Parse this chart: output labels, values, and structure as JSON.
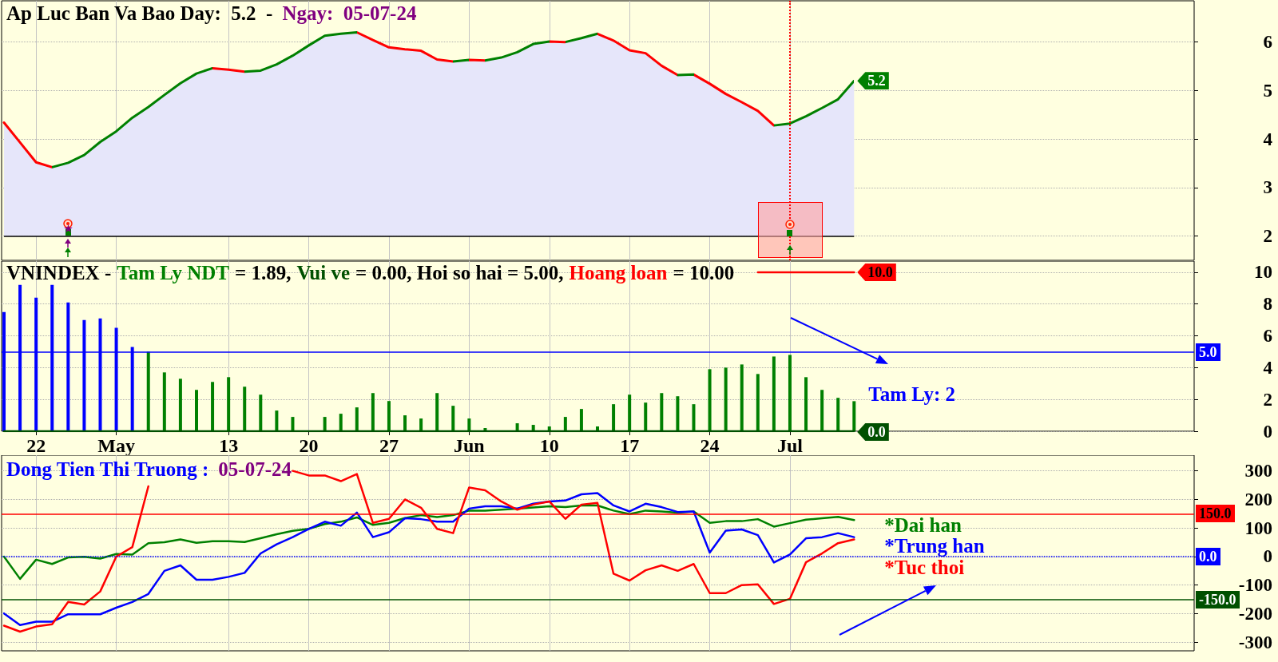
{
  "chart_data": [
    {
      "type": "area",
      "title": "Ap Luc Ban Va Bao Day:  5.2  -",
      "subtitle": "Ngay:  05-07-24",
      "categories": [
        null,
        null,
        null,
        null,
        null,
        null,
        null,
        null,
        null,
        null,
        null,
        null,
        null,
        null,
        null,
        null,
        null,
        null,
        null,
        null,
        null,
        null,
        null,
        null,
        null,
        null,
        null,
        null,
        null,
        null,
        null,
        null,
        null,
        null,
        null,
        null,
        null,
        null,
        null,
        null,
        null,
        null,
        null,
        null,
        null,
        null,
        null,
        null,
        null,
        null,
        null,
        null,
        null,
        null
      ],
      "series": [
        {
          "color": "#e6e6fa",
          "colors": [
            "#ff0000",
            "#ff0000",
            "#ff0000",
            "#ff0000",
            "#008000",
            "#008000",
            "#008000",
            "#008000",
            "#008000",
            "#008000",
            "#008000",
            "#008000",
            "#008000",
            "#008000",
            "#ff0000",
            "#ff0000",
            "#008000",
            "#008000",
            "#008000",
            "#008000",
            "#008000",
            "#008000",
            "#008000",
            "#ff0000",
            "#ff0000",
            "#ff0000",
            "#ff0000",
            "#ff0000",
            "#ff0000",
            "#008000",
            "#ff0000",
            "#008000",
            "#008000",
            "#008000",
            "#008000",
            "#ff0000",
            "#008000",
            "#008000",
            "#ff0000",
            "#ff0000",
            "#ff0000",
            "#ff0000",
            "#ff0000",
            "#008000",
            "#ff0000",
            "#ff0000",
            "#ff0000",
            "#ff0000",
            "#ff0000",
            "#008000",
            "#008000",
            "#008000",
            "#008000",
            "#008000"
          ],
          "values": [
            4.34,
            3.93,
            3.52,
            3.42,
            3.51,
            3.67,
            3.94,
            4.16,
            4.44,
            4.66,
            4.91,
            5.15,
            5.35,
            5.46,
            5.43,
            5.39,
            5.41,
            5.54,
            5.72,
            5.93,
            6.13,
            6.17,
            6.2,
            6.04,
            5.89,
            5.85,
            5.82,
            5.64,
            5.6,
            5.63,
            5.62,
            5.68,
            5.79,
            5.96,
            6.01,
            6.0,
            6.08,
            6.17,
            6.03,
            5.83,
            5.77,
            5.51,
            5.32,
            5.33,
            5.14,
            4.93,
            4.76,
            4.58,
            4.28,
            4.32,
            4.47,
            4.64,
            4.82,
            5.2
          ],
          "value_labels": [
            null,
            null,
            null,
            null,
            null,
            null,
            null,
            null,
            null,
            null,
            null,
            null,
            null,
            null,
            null,
            null,
            null,
            null,
            null,
            null,
            null,
            null,
            null,
            null,
            null,
            null,
            null,
            null,
            null,
            null,
            null,
            null,
            null,
            null,
            null,
            null,
            null,
            null,
            null,
            null,
            null,
            null,
            null,
            null,
            null,
            null,
            null,
            null,
            null,
            null,
            null,
            null,
            null,
            "5.2"
          ]
        }
      ],
      "ylim": [
        1.5,
        6.85
      ],
      "yticks": [
        2,
        3,
        4,
        5,
        6
      ],
      "grid": true,
      "ref_lines": [
        {
          "axis": "y",
          "value": 2,
          "color": "#000000"
        }
      ]
    },
    {
      "type": "bar",
      "title": "VNINDEX -",
      "legend": "top",
      "categories": [
        null,
        null,
        "22",
        null,
        null,
        null,
        null,
        "May",
        null,
        null,
        null,
        null,
        null,
        null,
        "13",
        null,
        null,
        null,
        null,
        "20",
        null,
        null,
        null,
        null,
        "27",
        null,
        null,
        null,
        null,
        "Jun",
        null,
        null,
        null,
        null,
        "10",
        null,
        null,
        null,
        null,
        "17",
        null,
        null,
        null,
        null,
        "24",
        null,
        null,
        null,
        null,
        "Jul",
        null,
        null,
        null,
        null
      ],
      "series": [
        {
          "name": "Tam Ly NDT",
          "color": "#008000",
          "colors": [
            "#0000ff",
            "#0000ff",
            "#0000ff",
            "#0000ff",
            "#0000ff",
            "#0000ff",
            "#0000ff",
            "#0000ff",
            "#0000ff",
            "#008000",
            "#008000",
            "#008000",
            "#008000",
            "#008000",
            "#008000",
            "#008000",
            "#008000",
            "#008000",
            "#008000",
            "#008000",
            "#008000",
            "#008000",
            "#008000",
            "#008000",
            "#008000",
            "#008000",
            "#008000",
            "#008000",
            "#008000",
            "#008000",
            "#008000",
            "#008000",
            "#008000",
            "#008000",
            "#008000",
            "#008000",
            "#008000",
            "#008000",
            "#008000",
            "#008000",
            "#008000",
            "#008000",
            "#008000",
            "#008000",
            "#008000",
            "#008000",
            "#008000",
            "#008000",
            "#008000",
            "#008000",
            "#008000",
            "#008000",
            "#008000",
            "#008000"
          ],
          "values": [
            7.5,
            9.2,
            8.4,
            9.2,
            8.1,
            7.0,
            7.1,
            6.5,
            5.3,
            5.0,
            3.7,
            3.3,
            2.6,
            3.1,
            3.4,
            2.8,
            2.3,
            1.3,
            0.9,
            0,
            0.9,
            1.1,
            1.5,
            2.4,
            1.9,
            1.0,
            0.8,
            2.4,
            1.6,
            0.8,
            0.2,
            0,
            0.5,
            0.4,
            0.3,
            0.9,
            1.4,
            0.3,
            1.7,
            2.3,
            1.8,
            2.4,
            2.2,
            1.7,
            3.9,
            4.0,
            4.2,
            3.6,
            4.7,
            4.8,
            3.4,
            2.6,
            2.1,
            1.89
          ]
        },
        {
          "name": "Vui ve",
          "type": "line",
          "color": "#005000",
          "values": [
            0,
            0,
            0,
            0,
            0,
            0,
            0,
            0,
            0,
            0,
            0,
            0,
            0,
            0,
            0,
            0,
            0,
            0,
            0,
            0,
            0,
            0,
            0,
            0,
            0,
            0,
            0,
            0,
            0,
            0,
            0,
            0,
            0,
            0,
            0,
            0,
            0,
            0,
            0,
            0,
            0,
            0,
            0,
            0,
            0,
            0,
            0,
            0,
            0,
            0,
            0,
            0,
            0,
            0
          ],
          "value_labels": [
            null,
            null,
            null,
            null,
            null,
            null,
            null,
            null,
            null,
            null,
            null,
            null,
            null,
            null,
            null,
            null,
            null,
            null,
            null,
            null,
            null,
            null,
            null,
            null,
            null,
            null,
            null,
            null,
            null,
            null,
            null,
            null,
            null,
            null,
            null,
            null,
            null,
            null,
            null,
            null,
            null,
            null,
            null,
            null,
            null,
            null,
            null,
            null,
            null,
            null,
            null,
            null,
            null,
            "0.0"
          ]
        },
        {
          "name": "Hoang loan",
          "type": "line",
          "color": "#ff0000",
          "values": [
            null,
            null,
            null,
            null,
            null,
            null,
            null,
            null,
            null,
            null,
            null,
            null,
            null,
            null,
            null,
            null,
            null,
            null,
            null,
            null,
            null,
            null,
            null,
            null,
            null,
            null,
            null,
            null,
            null,
            null,
            null,
            null,
            null,
            null,
            null,
            null,
            null,
            null,
            null,
            null,
            null,
            null,
            null,
            null,
            null,
            null,
            null,
            10,
            10,
            10,
            10,
            10,
            10,
            10
          ],
          "value_labels": [
            null,
            null,
            null,
            null,
            null,
            null,
            null,
            null,
            null,
            null,
            null,
            null,
            null,
            null,
            null,
            null,
            null,
            null,
            null,
            null,
            null,
            null,
            null,
            null,
            null,
            null,
            null,
            null,
            null,
            null,
            null,
            null,
            null,
            null,
            null,
            null,
            null,
            null,
            null,
            null,
            null,
            null,
            null,
            null,
            null,
            null,
            null,
            null,
            null,
            null,
            null,
            null,
            null,
            "10.0"
          ]
        }
      ],
      "ylim": [
        0,
        10.7
      ],
      "yticks": [
        0,
        2,
        4,
        6,
        8,
        10
      ],
      "grid": true,
      "ref_lines": [
        {
          "axis": "y",
          "value": 5,
          "label": "5.0",
          "color": "#0000ff"
        }
      ],
      "annotations": [
        "= 1.89,",
        "= 0.00, Hoi so hai = 5.00,",
        "= 10.00",
        "Tam Ly: 2"
      ]
    },
    {
      "type": "line",
      "title": "Dong Tien Thi Truong :",
      "subtitle": "05-07-24",
      "categories": [
        null,
        null,
        null,
        null,
        null,
        null,
        null,
        null,
        null,
        null,
        null,
        null,
        null,
        null,
        null,
        null,
        null,
        null,
        null,
        null,
        null,
        null,
        null,
        null,
        null,
        null,
        null,
        null,
        null,
        null,
        null,
        null,
        null,
        null,
        null,
        null,
        null,
        null,
        null,
        null,
        null,
        null,
        null,
        null,
        null,
        null,
        null,
        null,
        null,
        null,
        null,
        null,
        null,
        null
      ],
      "series": [
        {
          "name": "*Dai han",
          "color": "#008000",
          "values": [
            0,
            -78,
            -11,
            -26,
            -3,
            -1,
            -7,
            9,
            7,
            47,
            50,
            60,
            48,
            54,
            54,
            51,
            64,
            78,
            90,
            97,
            114,
            122,
            137,
            111,
            118,
            135,
            145,
            138,
            145,
            161,
            161,
            164,
            168,
            172,
            176,
            173,
            179,
            179,
            161,
            149,
            161,
            158,
            154,
            158,
            118,
            124,
            124,
            131,
            105,
            117,
            129,
            134,
            139,
            128
          ]
        },
        {
          "name": "*Trung han",
          "color": "#0000ff",
          "values": [
            -199,
            -240,
            -228,
            -228,
            -202,
            -202,
            -202,
            -179,
            -159,
            -131,
            -50,
            -31,
            -81,
            -81,
            -71,
            -57,
            11,
            43,
            68,
            97,
            122,
            108,
            154,
            68,
            85,
            134,
            131,
            122,
            122,
            168,
            176,
            176,
            168,
            185,
            193,
            196,
            218,
            222,
            179,
            158,
            185,
            173,
            156,
            158,
            14,
            91,
            95,
            75,
            -21,
            7,
            64,
            68,
            82,
            68
          ]
        },
        {
          "name": "*Tuc thoi",
          "color": "#ff0000",
          "values": [
            -242,
            -263,
            -245,
            -237,
            -159,
            -168,
            -122,
            0,
            33,
            246,
            null,
            null,
            null,
            null,
            null,
            null,
            null,
            null,
            300,
            284,
            284,
            264,
            289,
            118,
            132,
            200,
            171,
            97,
            82,
            242,
            232,
            193,
            164,
            182,
            193,
            132,
            182,
            188,
            -60,
            -84,
            -48,
            -31,
            -50,
            -26,
            -128,
            -128,
            -100,
            -97,
            -166,
            -148,
            -20,
            11,
            47,
            60
          ]
        }
      ],
      "ylim": [
        -330,
        355
      ],
      "yticks": [
        -300,
        -200,
        -100,
        0,
        100,
        200,
        300
      ],
      "grid": true,
      "ref_lines": [
        {
          "axis": "y",
          "value": 150,
          "label": "150.0",
          "color": "#ff0000"
        },
        {
          "axis": "y",
          "value": 0,
          "label": "0.0",
          "color": "#0000ff",
          "line_style": "dotted"
        },
        {
          "axis": "y",
          "value": -150,
          "label": "-150.0",
          "color": "#005000"
        }
      ]
    }
  ]
}
